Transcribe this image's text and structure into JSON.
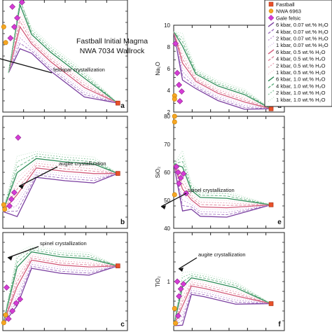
{
  "figure": {
    "title_line1": "Fastball Initial Magma",
    "title_line2": "NWA 7034 Wallrock"
  },
  "legend": {
    "entries": [
      {
        "label": "Fastball",
        "marker": "square",
        "color": "#e8512a"
      },
      {
        "label": "NWA 6963",
        "marker": "circle",
        "color": "#f5a623"
      },
      {
        "label": "Gale felsic",
        "marker": "diamond",
        "color": "#d63cd6"
      },
      {
        "label": "6 kbar, 0.07 wt.% H₂O",
        "marker": "line",
        "color": "#7b3fa0",
        "dash": ""
      },
      {
        "label": "4 kbar, 0.07 wt.% H₂O",
        "marker": "line",
        "color": "#a070c0",
        "dash": "4,2"
      },
      {
        "label": "2 kbar, 0.07 wt.% H₂O",
        "marker": "line",
        "color": "#c49ad8",
        "dash": "2,2"
      },
      {
        "label": "1 kbar, 0.07 wt.% H₂O",
        "marker": "line",
        "color": "#d8b8e8",
        "dash": "1,2"
      },
      {
        "label": "6 kbar, 0.5 wt.% H₂O",
        "marker": "line",
        "color": "#d25a7a",
        "dash": ""
      },
      {
        "label": "4 kbar, 0.5 wt.% H₂O",
        "marker": "line",
        "color": "#e0849c",
        "dash": "4,2"
      },
      {
        "label": "2 kbar, 0.5 wt.% H₂O",
        "marker": "line",
        "color": "#eaa6b8",
        "dash": "2,2"
      },
      {
        "label": "1 kbar, 0.5 wt.% H₂O",
        "marker": "line",
        "color": "#f2c4d0",
        "dash": "1,2"
      },
      {
        "label": "6 kbar, 1.0 wt.% H₂O",
        "marker": "line",
        "color": "#2e8b57",
        "dash": ""
      },
      {
        "label": "4 kbar, 1.0 wt.% H₂O",
        "marker": "line",
        "color": "#5fb07e",
        "dash": "4,2"
      },
      {
        "label": "2 kbar, 1.0 wt.% H₂O",
        "marker": "line",
        "color": "#8fcaa2",
        "dash": "2,2"
      },
      {
        "label": "1 kbar, 1.0 wt.% H₂O",
        "marker": "line",
        "color": "#bfe2c8",
        "dash": "1,2"
      }
    ]
  },
  "chart_data": [
    {
      "id": "a",
      "panel_letter": "a",
      "type": "line",
      "ylim": [
        0,
        10
      ],
      "annotation": "feldspar crystallization",
      "series_main": [
        [
          0.6,
          3.5
        ],
        [
          1.8,
          8.1
        ],
        [
          3.0,
          6.3
        ],
        [
          5.0,
          4.7
        ],
        [
          8.5,
          2.4
        ],
        [
          12.0,
          0.8
        ]
      ],
      "fastball": [
        12.0,
        0.8
      ],
      "nwa6963": [
        [
          0.1,
          7.6
        ],
        [
          0.3,
          6.2
        ]
      ],
      "gale": [
        [
          1.0,
          9.4
        ],
        [
          2.0,
          9.8
        ],
        [
          1.5,
          8.4
        ],
        [
          1.2,
          7.6
        ],
        [
          0.8,
          6.6
        ]
      ]
    },
    {
      "id": "d",
      "panel_letter": "d",
      "type": "line",
      "ylabel": "Na₂O",
      "ylim": [
        2,
        10
      ],
      "yticks": [
        2,
        4,
        6,
        8,
        10
      ],
      "series_main": [
        [
          0.0,
          9.4
        ],
        [
          1.0,
          6.9
        ],
        [
          2.5,
          5.0
        ],
        [
          5.0,
          3.9
        ],
        [
          8.0,
          3.1
        ],
        [
          11.0,
          2.3
        ]
      ],
      "fastball": [
        11.0,
        2.3
      ],
      "nwa6963": [
        [
          0.1,
          3.5
        ],
        [
          0.1,
          3.2
        ]
      ],
      "gale": [
        [
          0.2,
          8.3
        ],
        [
          0.4,
          5.6
        ],
        [
          0.6,
          4.5
        ],
        [
          0.7,
          3.0
        ],
        [
          0.9,
          3.9
        ]
      ]
    },
    {
      "id": "b",
      "panel_letter": "b",
      "type": "line",
      "ylim": [
        0,
        10
      ],
      "annotation": "augite crystallization",
      "series_main": [
        [
          0.0,
          1.5
        ],
        [
          1.5,
          3.5
        ],
        [
          3.5,
          5.6
        ],
        [
          6.5,
          5.3
        ],
        [
          9.5,
          5.1
        ],
        [
          12.0,
          4.9
        ]
      ],
      "fastball": [
        12.0,
        4.9
      ],
      "nwa6963": [
        [
          0.1,
          2.1
        ],
        [
          0.2,
          1.7
        ]
      ],
      "gale": [
        [
          1.6,
          8.1
        ],
        [
          1.2,
          3.2
        ],
        [
          0.9,
          2.6
        ],
        [
          0.7,
          2.0
        ]
      ]
    },
    {
      "id": "e",
      "panel_letter": "e",
      "type": "line",
      "ylabel": "SiO₂",
      "ylim": [
        40,
        80
      ],
      "yticks": [
        40,
        50,
        60,
        70,
        80
      ],
      "annotation": "spinel crystallization",
      "series_main": [
        [
          0.0,
          63.0
        ],
        [
          1.0,
          56.0
        ],
        [
          2.0,
          51.0
        ],
        [
          3.0,
          48.5
        ],
        [
          6.0,
          48.2
        ],
        [
          11.0,
          48.4
        ]
      ],
      "fastball": [
        11.0,
        48.4
      ],
      "nwa6963": [
        [
          0.1,
          80.0
        ],
        [
          0.1,
          78.0
        ],
        [
          0.1,
          52.0
        ]
      ],
      "gale": [
        [
          0.3,
          62.0
        ],
        [
          0.5,
          60.0
        ],
        [
          0.8,
          58.0
        ],
        [
          1.1,
          59.5
        ],
        [
          0.6,
          56.0
        ],
        [
          1.4,
          52.5
        ]
      ]
    },
    {
      "id": "c",
      "panel_letter": "c",
      "type": "line",
      "ylim": [
        0,
        10
      ],
      "annotation": "spinel crystallization",
      "series_main": [
        [
          0.0,
          0.6
        ],
        [
          1.5,
          5.0
        ],
        [
          3.0,
          7.4
        ],
        [
          6.0,
          6.9
        ],
        [
          9.0,
          6.7
        ],
        [
          12.0,
          6.6
        ]
      ],
      "fastball": [
        12.0,
        6.6
      ],
      "nwa6963": [
        [
          0.1,
          0.8
        ],
        [
          0.3,
          1.6
        ]
      ],
      "gale": [
        [
          0.4,
          4.4
        ],
        [
          1.4,
          2.8
        ],
        [
          1.0,
          2.0
        ],
        [
          1.8,
          3.2
        ],
        [
          0.6,
          1.2
        ]
      ]
    },
    {
      "id": "f",
      "panel_letter": "f",
      "type": "line",
      "ylabel": "TiO₂",
      "ylim": [
        0,
        2
      ],
      "yticks": [
        1
      ],
      "annotation": "augite crystallization",
      "series_main": [
        [
          0.0,
          0.1
        ],
        [
          1.0,
          0.6
        ],
        [
          2.0,
          0.95
        ],
        [
          3.5,
          0.9
        ],
        [
          7.0,
          0.75
        ],
        [
          11.0,
          0.55
        ]
      ],
      "fastball": [
        11.0,
        0.55
      ],
      "nwa6963": [
        [
          0.1,
          0.45
        ],
        [
          0.2,
          0.15
        ]
      ],
      "gale": [
        [
          0.4,
          1.0
        ],
        [
          0.6,
          0.7
        ],
        [
          0.8,
          0.85
        ],
        [
          1.1,
          0.95
        ],
        [
          0.5,
          0.3
        ]
      ]
    }
  ]
}
